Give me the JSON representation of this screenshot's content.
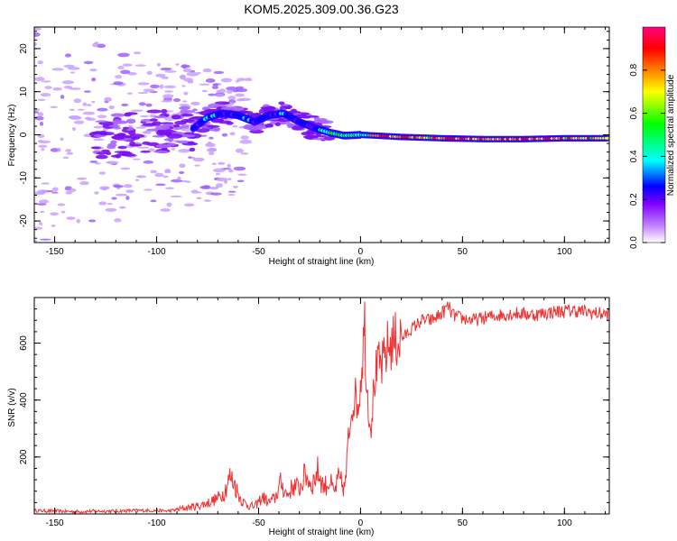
{
  "title": "KOM5.2025.309.00.36.G23",
  "chart_data": [
    {
      "type": "heatmap",
      "xlabel": "Height of straight line (km)",
      "ylabel": "Frequency (Hz)",
      "xlim": [
        -160,
        122
      ],
      "ylim": [
        -25,
        25
      ],
      "xticks": [
        -150,
        -100,
        -50,
        0,
        50,
        100
      ],
      "yticks": [
        -20,
        -10,
        0,
        10,
        20
      ],
      "colorbar": {
        "label": "Normalized spectral amplitude",
        "range": [
          0,
          1
        ],
        "ticks": [
          "0.0",
          "0.2",
          "0.4",
          "0.6",
          "0.8"
        ],
        "colors": [
          "#ffffff",
          "#c080ff",
          "#8000ff",
          "#0000ff",
          "#00ffff",
          "#00ff00",
          "#ffff00",
          "#ff8000",
          "#ff0000",
          "#ff0080"
        ]
      },
      "ridge": {
        "x": [
          -82,
          -75,
          -68,
          -60,
          -52,
          -45,
          -38,
          -30,
          -22,
          -15,
          -8,
          0,
          20,
          40,
          60,
          80,
          100,
          122
        ],
        "freq": [
          1.5,
          4.0,
          5.0,
          4.5,
          3.0,
          4.5,
          5.0,
          3.0,
          1.5,
          0.5,
          -0.2,
          0.0,
          -0.5,
          -0.8,
          -1.0,
          -1.0,
          -0.8,
          -0.8
        ]
      }
    },
    {
      "type": "line",
      "xlabel": "Height of straight line (km)",
      "ylabel": "SNR (v/v)",
      "xlim": [
        -160,
        122
      ],
      "ylim": [
        0,
        760
      ],
      "xticks": [
        -150,
        -100,
        -50,
        0,
        50,
        100
      ],
      "yticks": [
        200,
        400,
        600
      ],
      "color": "#ee3333",
      "series": [
        {
          "name": "SNR",
          "x": [
            -160,
            -150,
            -140,
            -130,
            -120,
            -110,
            -100,
            -95,
            -90,
            -85,
            -80,
            -75,
            -70,
            -67,
            -64,
            -62,
            -60,
            -58,
            -55,
            -52,
            -48,
            -45,
            -42,
            -39,
            -36,
            -33,
            -30,
            -27,
            -24,
            -21,
            -18,
            -15,
            -13,
            -11,
            -9,
            -8,
            -7,
            -5,
            -3,
            -1,
            1,
            2,
            3,
            5,
            7,
            9,
            11,
            13,
            15,
            18,
            21,
            25,
            30,
            35,
            40,
            43,
            45,
            48,
            55,
            65,
            75,
            85,
            95,
            105,
            115,
            122
          ],
          "y": [
            12,
            10,
            8,
            10,
            10,
            12,
            12,
            10,
            15,
            22,
            28,
            38,
            55,
            75,
            130,
            110,
            70,
            45,
            30,
            25,
            60,
            40,
            55,
            110,
            65,
            100,
            90,
            140,
            100,
            150,
            95,
            115,
            70,
            120,
            105,
            85,
            140,
            340,
            420,
            380,
            560,
            680,
            450,
            300,
            480,
            520,
            520,
            580,
            600,
            610,
            620,
            650,
            680,
            680,
            705,
            730,
            700,
            690,
            680,
            695,
            705,
            700,
            710,
            715,
            705,
            700
          ]
        }
      ]
    }
  ]
}
